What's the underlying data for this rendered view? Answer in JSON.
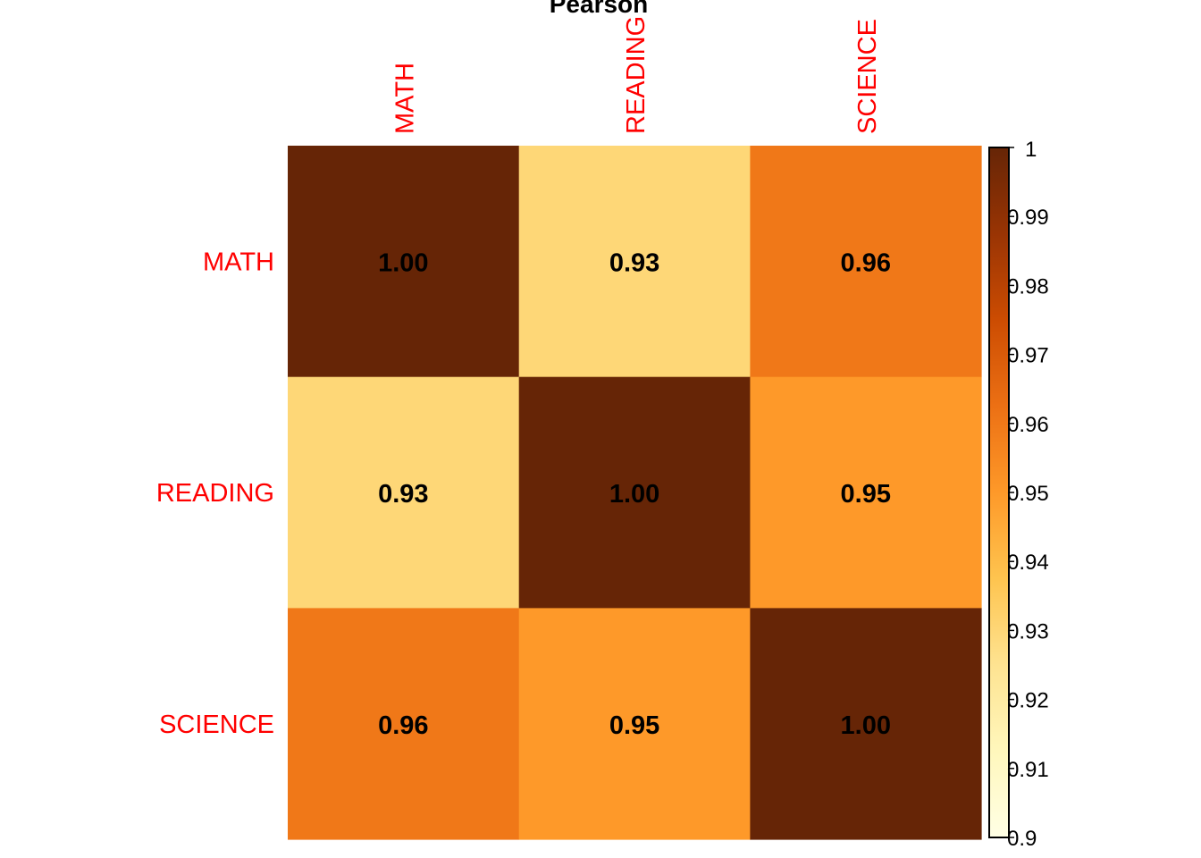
{
  "chart_data": {
    "type": "heatmap",
    "title": "Pearson",
    "row_labels": [
      "MATH",
      "READING",
      "SCIENCE"
    ],
    "col_labels": [
      "MATH",
      "READING",
      "SCIENCE"
    ],
    "values": [
      [
        1.0,
        0.93,
        0.96
      ],
      [
        0.93,
        1.0,
        0.95
      ],
      [
        0.96,
        0.95,
        1.0
      ]
    ],
    "value_labels": [
      [
        "1.00",
        "0.93",
        "0.96"
      ],
      [
        "0.93",
        "1.00",
        "0.95"
      ],
      [
        "0.96",
        "0.95",
        "1.00"
      ]
    ],
    "colorbar": {
      "range": [
        0.9,
        1.0
      ],
      "ticks": [
        "0.9",
        "0.91",
        "0.92",
        "0.93",
        "0.94",
        "0.95",
        "0.96",
        "0.97",
        "0.98",
        "0.99",
        "1"
      ],
      "colors": [
        "#FFFFE5",
        "#FFF7BC",
        "#FEE391",
        "#FEC44F",
        "#FE9929",
        "#EC7014",
        "#CC4C02",
        "#993404",
        "#662506"
      ]
    },
    "label_color": "#FF0000"
  }
}
